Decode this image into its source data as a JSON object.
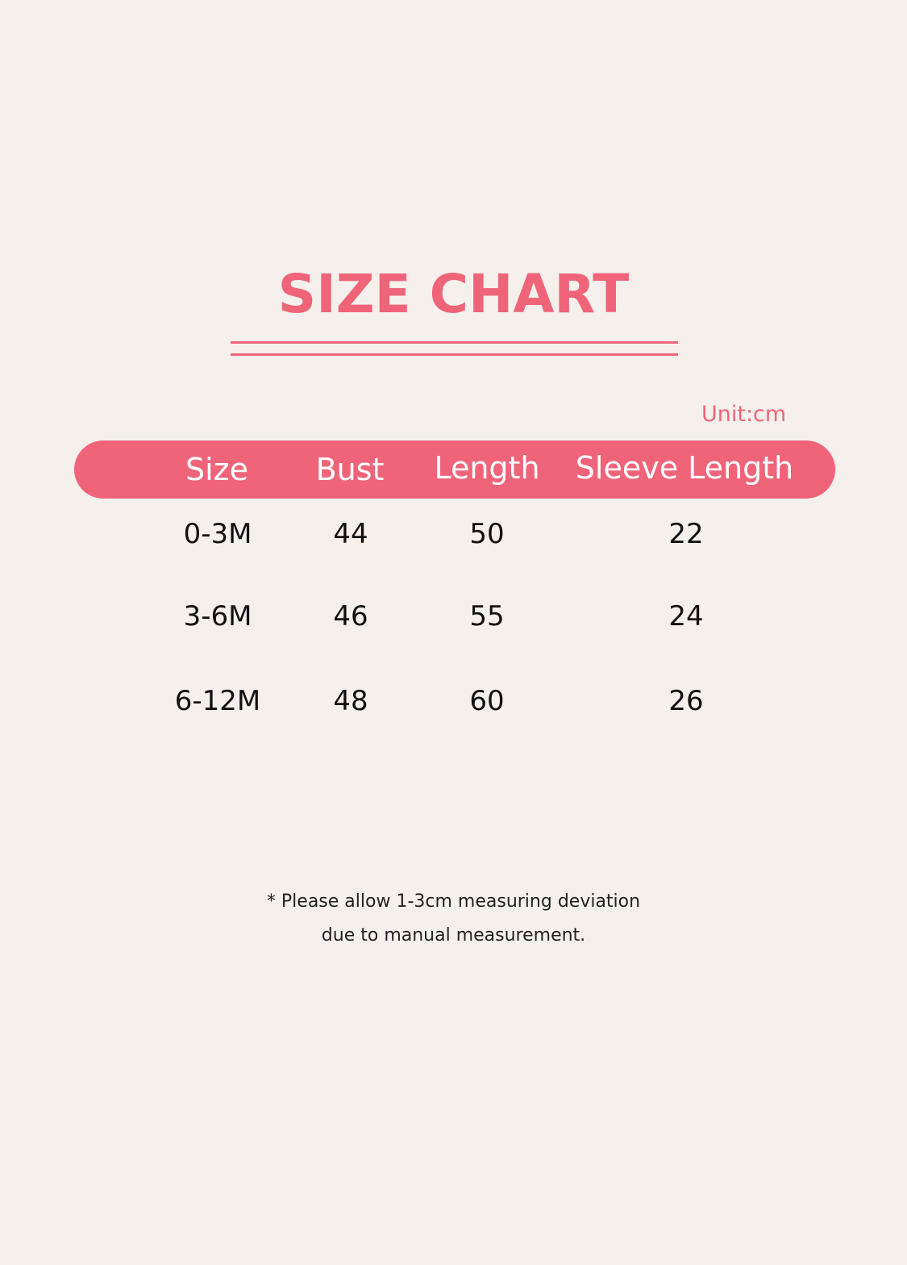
{
  "title": "SIZE CHART",
  "unit": "Unit:cm",
  "accent_color": "#ef6479",
  "columns": [
    "Size",
    "Bust",
    "Length",
    "Sleeve Length"
  ],
  "rows": [
    [
      "0-3M",
      "44",
      "50",
      "22"
    ],
    [
      "3-6M",
      "46",
      "55",
      "24"
    ],
    [
      "6-12M",
      "48",
      "60",
      "26"
    ]
  ],
  "note": [
    "* Please allow 1-3cm measuring deviation",
    "due to manual measurement."
  ]
}
